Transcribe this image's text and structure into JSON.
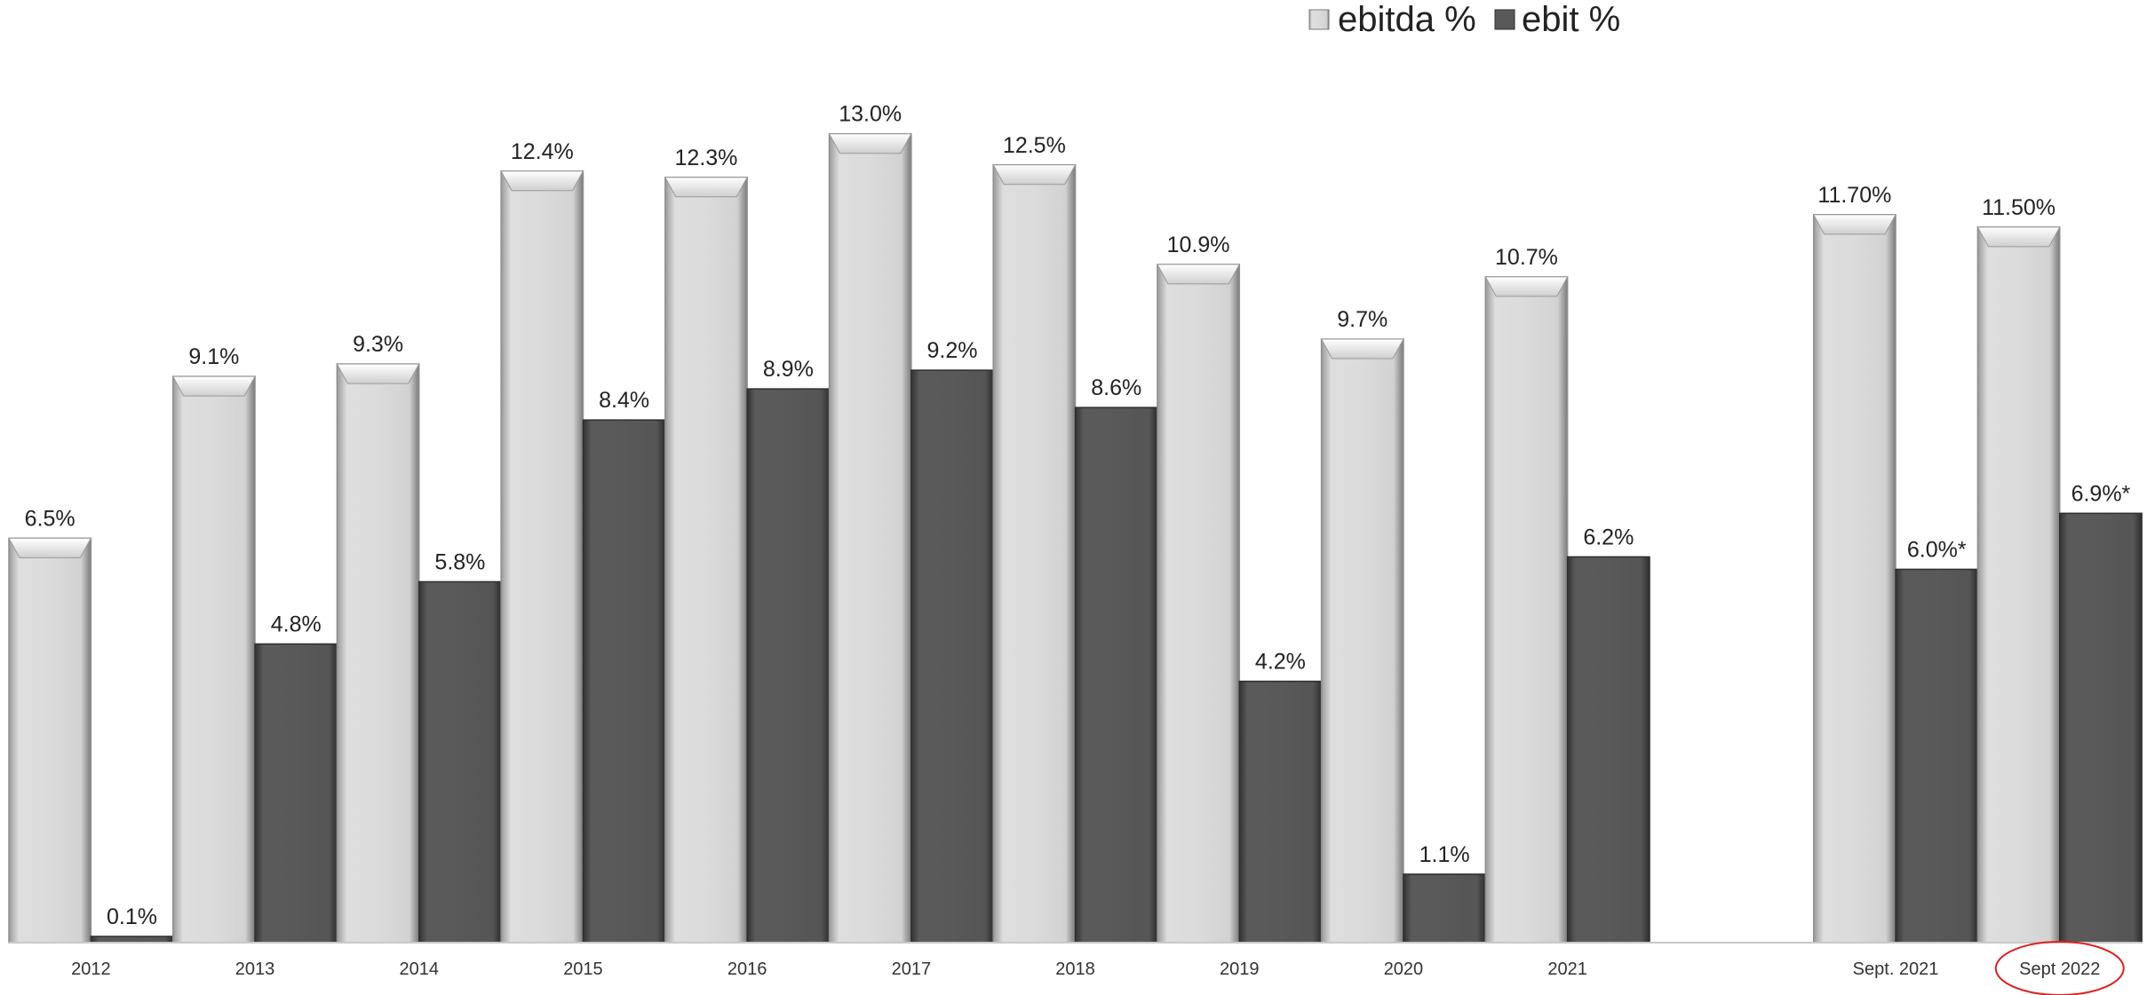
{
  "chart_data": {
    "type": "bar",
    "categories": [
      "2012",
      "2013",
      "2014",
      "2015",
      "2016",
      "2017",
      "2018",
      "2019",
      "2020",
      "2021",
      "",
      "Sept. 2021",
      "Sept 2022"
    ],
    "series": [
      {
        "name": "ebitda %",
        "values": [
          6.5,
          9.1,
          9.3,
          12.4,
          12.3,
          13.0,
          12.5,
          10.9,
          9.7,
          10.7,
          null,
          11.7,
          11.5
        ],
        "labels": [
          "6.5%",
          "9.1%",
          "9.3%",
          "12.4%",
          "12.3%",
          "13.0%",
          "12.5%",
          "10.9%",
          "9.7%",
          "10.7%",
          "",
          "11.70%",
          "11.50%"
        ]
      },
      {
        "name": "ebit %",
        "values": [
          0.1,
          4.8,
          5.8,
          8.4,
          8.9,
          9.2,
          8.6,
          4.2,
          1.1,
          6.2,
          null,
          6.0,
          6.9
        ],
        "labels": [
          "0.1%",
          "4.8%",
          "5.8%",
          "8.4%",
          "8.9%",
          "9.2%",
          "8.6%",
          "4.2%",
          "1.1%",
          "6.2%",
          "",
          "6.0%*",
          "6.9%*"
        ]
      }
    ],
    "ylim": [
      0,
      14.2
    ],
    "grid": false,
    "legend_position": "top-center",
    "highlighted_category": "Sept 2022",
    "colors": {
      "ebitda_light": "#f2f1f1",
      "ebitda_mid": "#dcdbdb",
      "ebitda_edge": "#8f8f8f",
      "ebit_fill": "#595959",
      "ebit_edge": "#2e2e2e",
      "highlight_ring": "#e02020",
      "axis": "#c8c8c8"
    }
  }
}
